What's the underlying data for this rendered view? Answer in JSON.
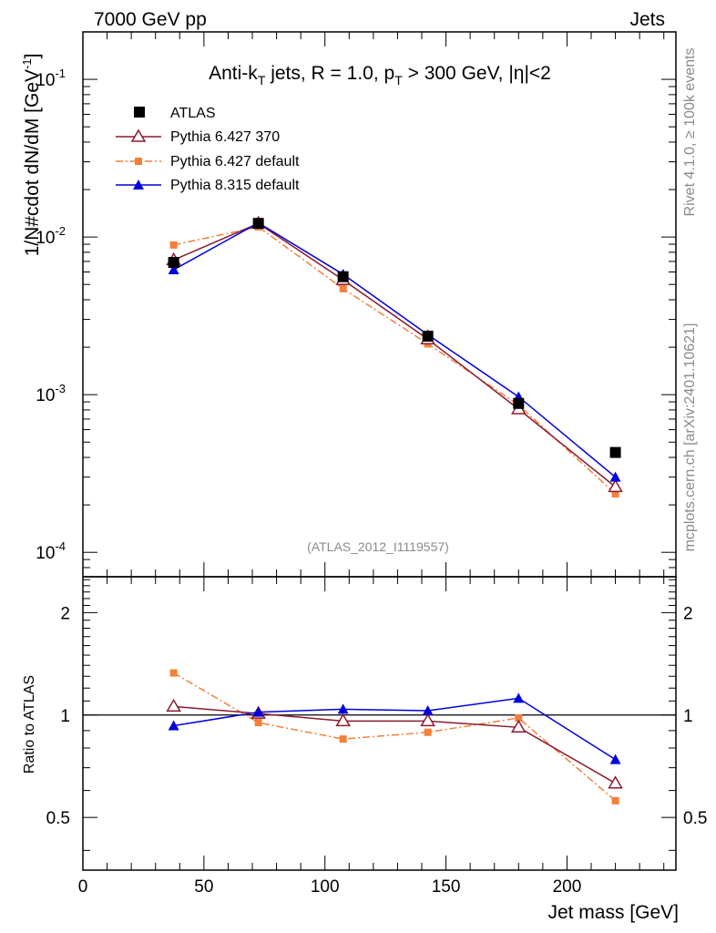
{
  "header": {
    "energy": "7000 GeV pp",
    "category": "Jets"
  },
  "side_labels": {
    "rivet": "Rivet 4.1.0, ≥ 100k events",
    "mcplots": "mcplots.cern.ch [arXiv:2401.10621]"
  },
  "plot_title": {
    "prefix": "Anti-k",
    "k_sub": "T",
    "mid": " jets, R = 1.0, p",
    "p_sub": "T",
    "suffix": " > 300 GeV, |η|<2"
  },
  "analysis_id": "(ATLAS_2012_I1119557)",
  "axes": {
    "ylabel_main": "1/N#cdot dN/dM [GeV",
    "ylabel_main_sup": "-1",
    "ylabel_main_close": "]",
    "ylabel_ratio": "Ratio to ATLAS",
    "xlabel": "Jet mass [GeV]",
    "x_ticks": [
      "0",
      "50",
      "100",
      "150",
      "200"
    ],
    "y_main_ticks": [
      {
        "base": "10",
        "exp": "-1"
      },
      {
        "base": "10",
        "exp": "-2"
      },
      {
        "base": "10",
        "exp": "-3"
      },
      {
        "base": "10",
        "exp": "-4"
      }
    ],
    "y_ratio_ticks": [
      "2",
      "1",
      "0.5"
    ]
  },
  "chart_data": {
    "type": "line",
    "title": "Anti-kT jets, R = 1.0, pT > 300 GeV, |η|<2",
    "xlabel": "Jet mass [GeV]",
    "ylabel": "1/N dN/dM [GeV^-1]",
    "xlim": [
      0,
      245
    ],
    "ylim_log": [
      7e-05,
      0.2
    ],
    "ratio_ylim_log": [
      0.35,
      2.55
    ],
    "x": [
      37.5,
      72.5,
      107.5,
      142.5,
      180,
      220
    ],
    "series": [
      {
        "name": "ATLAS",
        "style": "data",
        "color": "#000000",
        "values": [
          0.0069,
          0.0122,
          0.0056,
          0.00235,
          0.00088,
          0.00043
        ]
      },
      {
        "name": "Pythia 6.427 370",
        "style": "open-triangle",
        "color": "#8b1a2e",
        "values": [
          0.00715,
          0.0122,
          0.00535,
          0.00225,
          0.00081,
          0.00026
        ],
        "ratio": [
          1.06,
          1.01,
          0.96,
          0.96,
          0.92,
          0.63
        ]
      },
      {
        "name": "Pythia 6.427 default",
        "style": "dashdot-square",
        "color": "#f47f3a",
        "values": [
          0.0089,
          0.0116,
          0.0047,
          0.0021,
          0.00086,
          0.000235
        ],
        "ratio": [
          1.33,
          0.95,
          0.85,
          0.89,
          0.98,
          0.56
        ]
      },
      {
        "name": "Pythia 8.315 default",
        "style": "filled-triangle",
        "color": "#0000dd",
        "values": [
          0.0062,
          0.0123,
          0.0058,
          0.0024,
          0.00097,
          0.0003
        ],
        "ratio": [
          0.93,
          1.02,
          1.04,
          1.03,
          1.12,
          0.74
        ]
      }
    ],
    "legend_placement": "top-left"
  }
}
